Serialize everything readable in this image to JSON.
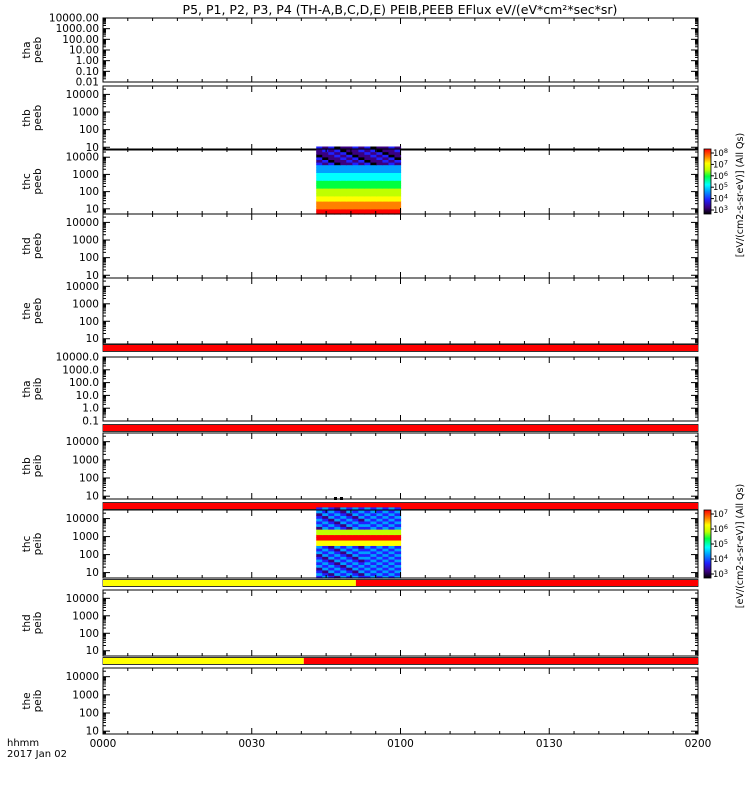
{
  "title": "P5, P1, P2, P3, P4 (TH-A,B,C,D,E) PEIB,PEEB EFlux eV/(eV*cm²*sec*sr)",
  "colorbar_label": "[eV/(cm2-s-sr-eV)] (All Qs)",
  "time_axis": {
    "label_line1": "hhmm",
    "label_line2": "2017 Jan 02",
    "ticks": [
      "0000",
      "0030",
      "0100",
      "0130",
      "0200"
    ],
    "range_minutes": [
      0,
      120
    ]
  },
  "colors": {
    "flag_red": "#ff0000",
    "flag_yellow": "#ffff00",
    "colormap": [
      "#000000",
      "#3a0080",
      "#2020ff",
      "#00a0ff",
      "#00ffff",
      "#00ff40",
      "#c0ff00",
      "#ffff00",
      "#ff8000",
      "#ff0000"
    ]
  },
  "chart_data": [
    {
      "type": "heatmap",
      "probe": "tha",
      "product": "peeb",
      "label_line1": "tha",
      "label_line2": "peeb",
      "yscale": "log",
      "ylim": [
        0.01,
        10000
      ],
      "yticks": [
        "10000.00",
        "1000.00",
        "100.00",
        "10.00",
        "1.00",
        "0.10",
        "0.01"
      ],
      "data": "none",
      "flag": null
    },
    {
      "type": "heatmap",
      "probe": "thb",
      "product": "peeb",
      "label_line1": "thb",
      "label_line2": "peeb",
      "yscale": "log",
      "ylim": [
        7,
        30000
      ],
      "yticks": [
        "10000",
        "1000",
        "100",
        "10"
      ],
      "data": "none",
      "flag": null
    },
    {
      "type": "heatmap",
      "probe": "thc",
      "product": "peeb",
      "label_line1": "thc",
      "label_line2": "peeb",
      "yscale": "log",
      "ylim": [
        5,
        30000
      ],
      "yticks": [
        "10000",
        "1000",
        "100",
        "10"
      ],
      "data": "present",
      "data_time_minutes": [
        43,
        60
      ],
      "colorbar": {
        "scale": "log",
        "range": [
          1000,
          100000000
        ],
        "ticks": [
          "10^8",
          "10^7",
          "10^6",
          "10^5",
          "10^4",
          "10^3"
        ]
      },
      "flag": null
    },
    {
      "type": "heatmap",
      "probe": "thd",
      "product": "peeb",
      "label_line1": "thd",
      "label_line2": "peeb",
      "yscale": "log",
      "ylim": [
        7,
        30000
      ],
      "yticks": [
        "10000",
        "1000",
        "100",
        "10"
      ],
      "data": "none",
      "flag": null
    },
    {
      "type": "heatmap",
      "probe": "the",
      "product": "peeb",
      "label_line1": "the",
      "label_line2": "peeb",
      "yscale": "log",
      "ylim": [
        5,
        30000
      ],
      "yticks": [
        "10000",
        "1000",
        "100",
        "10"
      ],
      "data": "none",
      "flag": {
        "segments": [
          {
            "from": 0,
            "to": 120,
            "color": "red"
          }
        ]
      }
    },
    {
      "type": "heatmap",
      "probe": "tha",
      "product": "peib",
      "label_line1": "tha",
      "label_line2": "peib",
      "yscale": "log",
      "ylim": [
        0.1,
        10000
      ],
      "yticks": [
        "10000.0",
        "1000.0",
        "100.0",
        "10.0",
        "1.0",
        "0.1"
      ],
      "data": "none",
      "flag": {
        "segments": [
          {
            "from": 0,
            "to": 120,
            "color": "red"
          }
        ]
      }
    },
    {
      "type": "heatmap",
      "probe": "thb",
      "product": "peib",
      "label_line1": "thb",
      "label_line2": "peib",
      "yscale": "log",
      "ylim": [
        7,
        30000
      ],
      "yticks": [
        "10000",
        "1000",
        "100",
        "10"
      ],
      "data": "none",
      "flag": {
        "segments": [
          {
            "from": 0,
            "to": 120,
            "color": "red"
          }
        ]
      }
    },
    {
      "type": "heatmap",
      "probe": "thc",
      "product": "peib",
      "label_line1": "thc",
      "label_line2": "peib",
      "yscale": "log",
      "ylim": [
        5,
        30000
      ],
      "yticks": [
        "10000",
        "1000",
        "100",
        "10"
      ],
      "data": "present",
      "data_time_minutes": [
        43,
        60
      ],
      "colorbar": {
        "scale": "log",
        "range": [
          1000,
          10000000
        ],
        "ticks": [
          "10^7",
          "10^6",
          "10^5",
          "10^4",
          "10^3"
        ]
      },
      "flag": {
        "segments": [
          {
            "from": 0,
            "to": 51,
            "color": "yellow"
          },
          {
            "from": 51,
            "to": 120,
            "color": "red"
          }
        ]
      }
    },
    {
      "type": "heatmap",
      "probe": "thd",
      "product": "peib",
      "label_line1": "thd",
      "label_line2": "peib",
      "yscale": "log",
      "ylim": [
        5,
        30000
      ],
      "yticks": [
        "10000",
        "1000",
        "100",
        "10"
      ],
      "data": "none",
      "flag": {
        "segments": [
          {
            "from": 0,
            "to": 40.5,
            "color": "yellow"
          },
          {
            "from": 40.5,
            "to": 120,
            "color": "red"
          }
        ]
      }
    },
    {
      "type": "heatmap",
      "probe": "the",
      "product": "peib",
      "label_line1": "the",
      "label_line2": "peib",
      "yscale": "log",
      "ylim": [
        7,
        30000
      ],
      "yticks": [
        "10000",
        "1000",
        "100",
        "10"
      ],
      "data": "none",
      "flag": null
    }
  ]
}
